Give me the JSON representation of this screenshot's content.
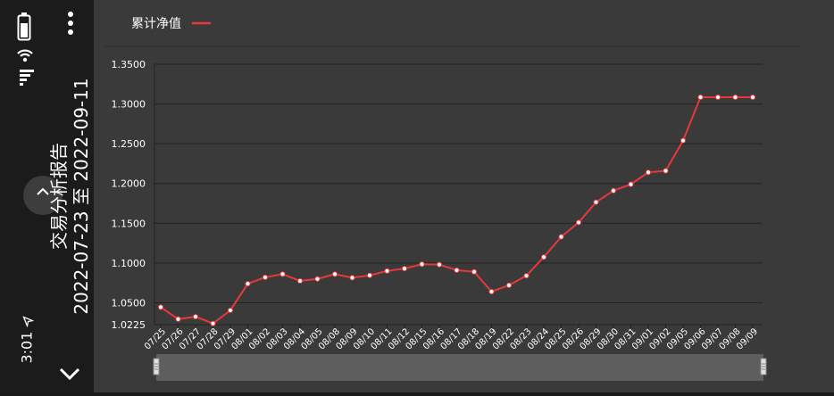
{
  "report": {
    "title": "交易分析报告",
    "period": "2022-07-23 至 2022-09-11"
  },
  "status": {
    "time": "3:01"
  },
  "icons": {
    "battery": "battery-icon",
    "wifi": "wifi-icon",
    "signal": "signal-icon",
    "more": "more-vertical-icon",
    "back": "chevron-left-icon",
    "expand": "chevron-down-icon",
    "location": "location-arrow-icon"
  },
  "colors": {
    "line": "#e8383c",
    "background": "#3a3a3a",
    "sidebar": "#1b1b1b"
  },
  "chart_data": {
    "type": "line",
    "title": "",
    "xlabel": "",
    "ylabel": "",
    "legend": "top-left",
    "grid": true,
    "ylim": [
      1.0225,
      1.35
    ],
    "yticks": [
      "1.3500",
      "1.3000",
      "1.2500",
      "1.2000",
      "1.1500",
      "1.1000",
      "1.0500",
      "1.0225"
    ],
    "categories": [
      "07/25",
      "07/26",
      "07/27",
      "07/28",
      "07/29",
      "08/01",
      "08/02",
      "08/03",
      "08/04",
      "08/05",
      "08/08",
      "08/09",
      "08/10",
      "08/11",
      "08/12",
      "08/15",
      "08/16",
      "08/17",
      "08/18",
      "08/19",
      "08/22",
      "08/23",
      "08/24",
      "08/25",
      "08/26",
      "08/29",
      "08/30",
      "08/31",
      "09/01",
      "09/02",
      "09/05",
      "09/06",
      "09/07",
      "09/08",
      "09/09"
    ],
    "series": [
      {
        "name": "累计净值",
        "values": [
          1.0445,
          1.0295,
          1.0325,
          1.024,
          1.0405,
          1.074,
          1.082,
          1.086,
          1.0775,
          1.08,
          1.086,
          1.0815,
          1.0845,
          1.09,
          1.093,
          1.0985,
          1.098,
          1.091,
          1.089,
          1.064,
          1.072,
          1.084,
          1.1075,
          1.133,
          1.151,
          1.1765,
          1.191,
          1.199,
          1.214,
          1.216,
          1.254,
          1.3085,
          1.3085,
          1.3085,
          1.3085
        ]
      }
    ]
  }
}
